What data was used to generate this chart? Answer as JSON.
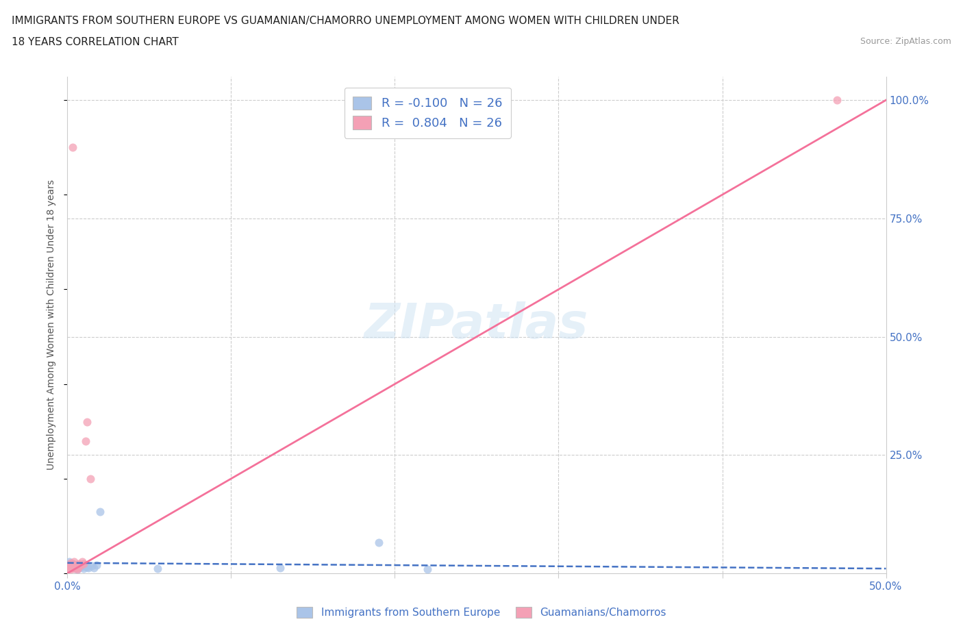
{
  "title_line1": "IMMIGRANTS FROM SOUTHERN EUROPE VS GUAMANIAN/CHAMORRO UNEMPLOYMENT AMONG WOMEN WITH CHILDREN UNDER",
  "title_line2": "18 YEARS CORRELATION CHART",
  "source": "Source: ZipAtlas.com",
  "ylabel": "Unemployment Among Women with Children Under 18 years",
  "xlim": [
    0.0,
    0.5
  ],
  "ylim": [
    0.0,
    1.05
  ],
  "watermark": "ZIPatlas",
  "r_blue": -0.1,
  "n_blue": 26,
  "r_pink": 0.804,
  "n_pink": 26,
  "blue_color": "#aac4e8",
  "pink_color": "#f4a0b5",
  "blue_line_color": "#4472c4",
  "pink_line_color": "#f4719a",
  "legend_label_blue": "Immigrants from Southern Europe",
  "legend_label_pink": "Guamanians/Chamorros",
  "background_color": "#ffffff",
  "grid_color": "#cccccc",
  "blue_x": [
    0.001,
    0.002,
    0.002,
    0.003,
    0.003,
    0.004,
    0.004,
    0.005,
    0.005,
    0.006,
    0.006,
    0.007,
    0.008,
    0.009,
    0.01,
    0.011,
    0.012,
    0.013,
    0.015,
    0.016,
    0.018,
    0.02,
    0.055,
    0.13,
    0.19,
    0.22
  ],
  "blue_y": [
    0.025,
    0.018,
    0.022,
    0.015,
    0.02,
    0.012,
    0.016,
    0.01,
    0.014,
    0.008,
    0.018,
    0.012,
    0.016,
    0.014,
    0.01,
    0.015,
    0.013,
    0.012,
    0.016,
    0.011,
    0.018,
    0.13,
    0.01,
    0.012,
    0.065,
    0.008
  ],
  "pink_x": [
    0.001,
    0.001,
    0.002,
    0.002,
    0.002,
    0.003,
    0.003,
    0.003,
    0.004,
    0.004,
    0.004,
    0.005,
    0.005,
    0.005,
    0.006,
    0.006,
    0.007,
    0.007,
    0.008,
    0.009,
    0.01,
    0.011,
    0.012,
    0.014,
    0.003,
    0.47
  ],
  "pink_y": [
    0.01,
    0.015,
    0.018,
    0.022,
    0.008,
    0.02,
    0.012,
    0.016,
    0.025,
    0.014,
    0.01,
    0.018,
    0.013,
    0.016,
    0.008,
    0.012,
    0.02,
    0.015,
    0.018,
    0.025,
    0.02,
    0.28,
    0.32,
    0.2,
    0.9,
    1.0
  ],
  "blue_line_x": [
    0.0,
    0.5
  ],
  "blue_line_y": [
    0.022,
    0.01
  ],
  "pink_line_x": [
    0.0,
    0.5
  ],
  "pink_line_y": [
    0.0,
    1.0
  ]
}
